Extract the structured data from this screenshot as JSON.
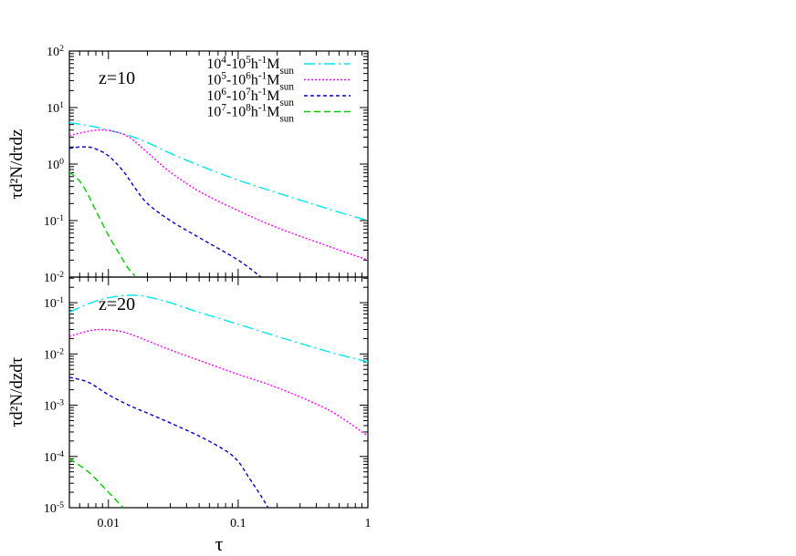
{
  "chart_data": [
    {
      "type": "line",
      "panel_label": "z=10",
      "ylabel": "τd²N/dτdz",
      "yscale": "log",
      "xscale": "log",
      "xlim": [
        0.005,
        1
      ],
      "ylim": [
        0.01,
        100
      ],
      "ytick_labels": [
        "10^-2",
        "10^-1",
        "10^0",
        "10^1",
        "10^2"
      ],
      "legend_position": "top-right",
      "series": [
        {
          "name": "10^4-10^5h^-1M_sun",
          "color": "#00e5ee",
          "dash": "12 4 2 4",
          "x": [
            0.005,
            0.007,
            0.01,
            0.015,
            0.02,
            0.03,
            0.05,
            0.1,
            0.2,
            0.5,
            1.0
          ],
          "y": [
            5.4,
            4.8,
            4.0,
            3.1,
            2.4,
            1.55,
            0.95,
            0.52,
            0.31,
            0.16,
            0.1
          ]
        },
        {
          "name": "10^5-10^6h^-1M_sun",
          "color": "#ff00ff",
          "dash": "2 2",
          "x": [
            0.005,
            0.007,
            0.009,
            0.012,
            0.015,
            0.02,
            0.03,
            0.05,
            0.1,
            0.2,
            0.5,
            1.0
          ],
          "y": [
            3.2,
            3.8,
            4.0,
            3.6,
            2.8,
            1.6,
            0.72,
            0.33,
            0.15,
            0.075,
            0.035,
            0.02
          ]
        },
        {
          "name": "10^6-10^7h^-1M_sun",
          "color": "#0000cc",
          "dash": "4 3",
          "x": [
            0.005,
            0.006,
            0.007,
            0.008,
            0.01,
            0.013,
            0.016,
            0.02,
            0.03,
            0.05,
            0.1,
            0.15
          ],
          "y": [
            1.9,
            2.0,
            2.0,
            1.85,
            1.4,
            0.75,
            0.38,
            0.2,
            0.1,
            0.05,
            0.02,
            0.01
          ]
        },
        {
          "name": "10^7-10^8h^-1M_sun",
          "color": "#00cc00",
          "dash": "7 4",
          "x": [
            0.005,
            0.006,
            0.007,
            0.008,
            0.01,
            0.012,
            0.014,
            0.016
          ],
          "y": [
            0.72,
            0.5,
            0.28,
            0.15,
            0.055,
            0.027,
            0.015,
            0.0105
          ]
        }
      ]
    },
    {
      "type": "line",
      "panel_label": "z=20",
      "ylabel": "τd²N/dzdτ",
      "xlabel": "τ",
      "yscale": "log",
      "xscale": "log",
      "xlim": [
        0.005,
        1
      ],
      "ylim": [
        1e-05,
        0.316
      ],
      "ytick_labels": [
        "10^-5",
        "10^-4",
        "10^-3",
        "10^-2",
        "10^-1"
      ],
      "xtick_labels": [
        "0.01",
        "0.1",
        "1"
      ],
      "series": [
        {
          "name": "10^4-10^5h^-1M_sun",
          "color": "#00e5ee",
          "dash": "12 4 2 4",
          "x": [
            0.005,
            0.007,
            0.01,
            0.015,
            0.02,
            0.03,
            0.05,
            0.1,
            0.2,
            0.5,
            1.0
          ],
          "y": [
            0.065,
            0.095,
            0.125,
            0.14,
            0.13,
            0.1,
            0.065,
            0.038,
            0.022,
            0.011,
            0.007
          ]
        },
        {
          "name": "10^5-10^6h^-1M_sun",
          "color": "#ff00ff",
          "dash": "2 2",
          "x": [
            0.005,
            0.007,
            0.009,
            0.012,
            0.015,
            0.02,
            0.03,
            0.05,
            0.1,
            0.2,
            0.5,
            1.0
          ],
          "y": [
            0.022,
            0.028,
            0.03,
            0.028,
            0.024,
            0.018,
            0.012,
            0.0075,
            0.004,
            0.0022,
            0.0008,
            0.00025
          ]
        },
        {
          "name": "10^6-10^7h^-1M_sun",
          "color": "#0000cc",
          "dash": "4 3",
          "x": [
            0.005,
            0.007,
            0.01,
            0.015,
            0.02,
            0.03,
            0.05,
            0.08,
            0.1,
            0.12,
            0.15,
            0.17
          ],
          "y": [
            0.0035,
            0.0028,
            0.0016,
            0.00095,
            0.0007,
            0.00045,
            0.00025,
            0.00013,
            8e-05,
            4e-05,
            1.7e-05,
            1e-05
          ]
        },
        {
          "name": "10^7-10^8h^-1M_sun",
          "color": "#00cc00",
          "dash": "7 4",
          "x": [
            0.005,
            0.007,
            0.01,
            0.013
          ],
          "y": [
            9e-05,
            5e-05,
            2e-05,
            1e-05
          ]
        }
      ]
    }
  ]
}
